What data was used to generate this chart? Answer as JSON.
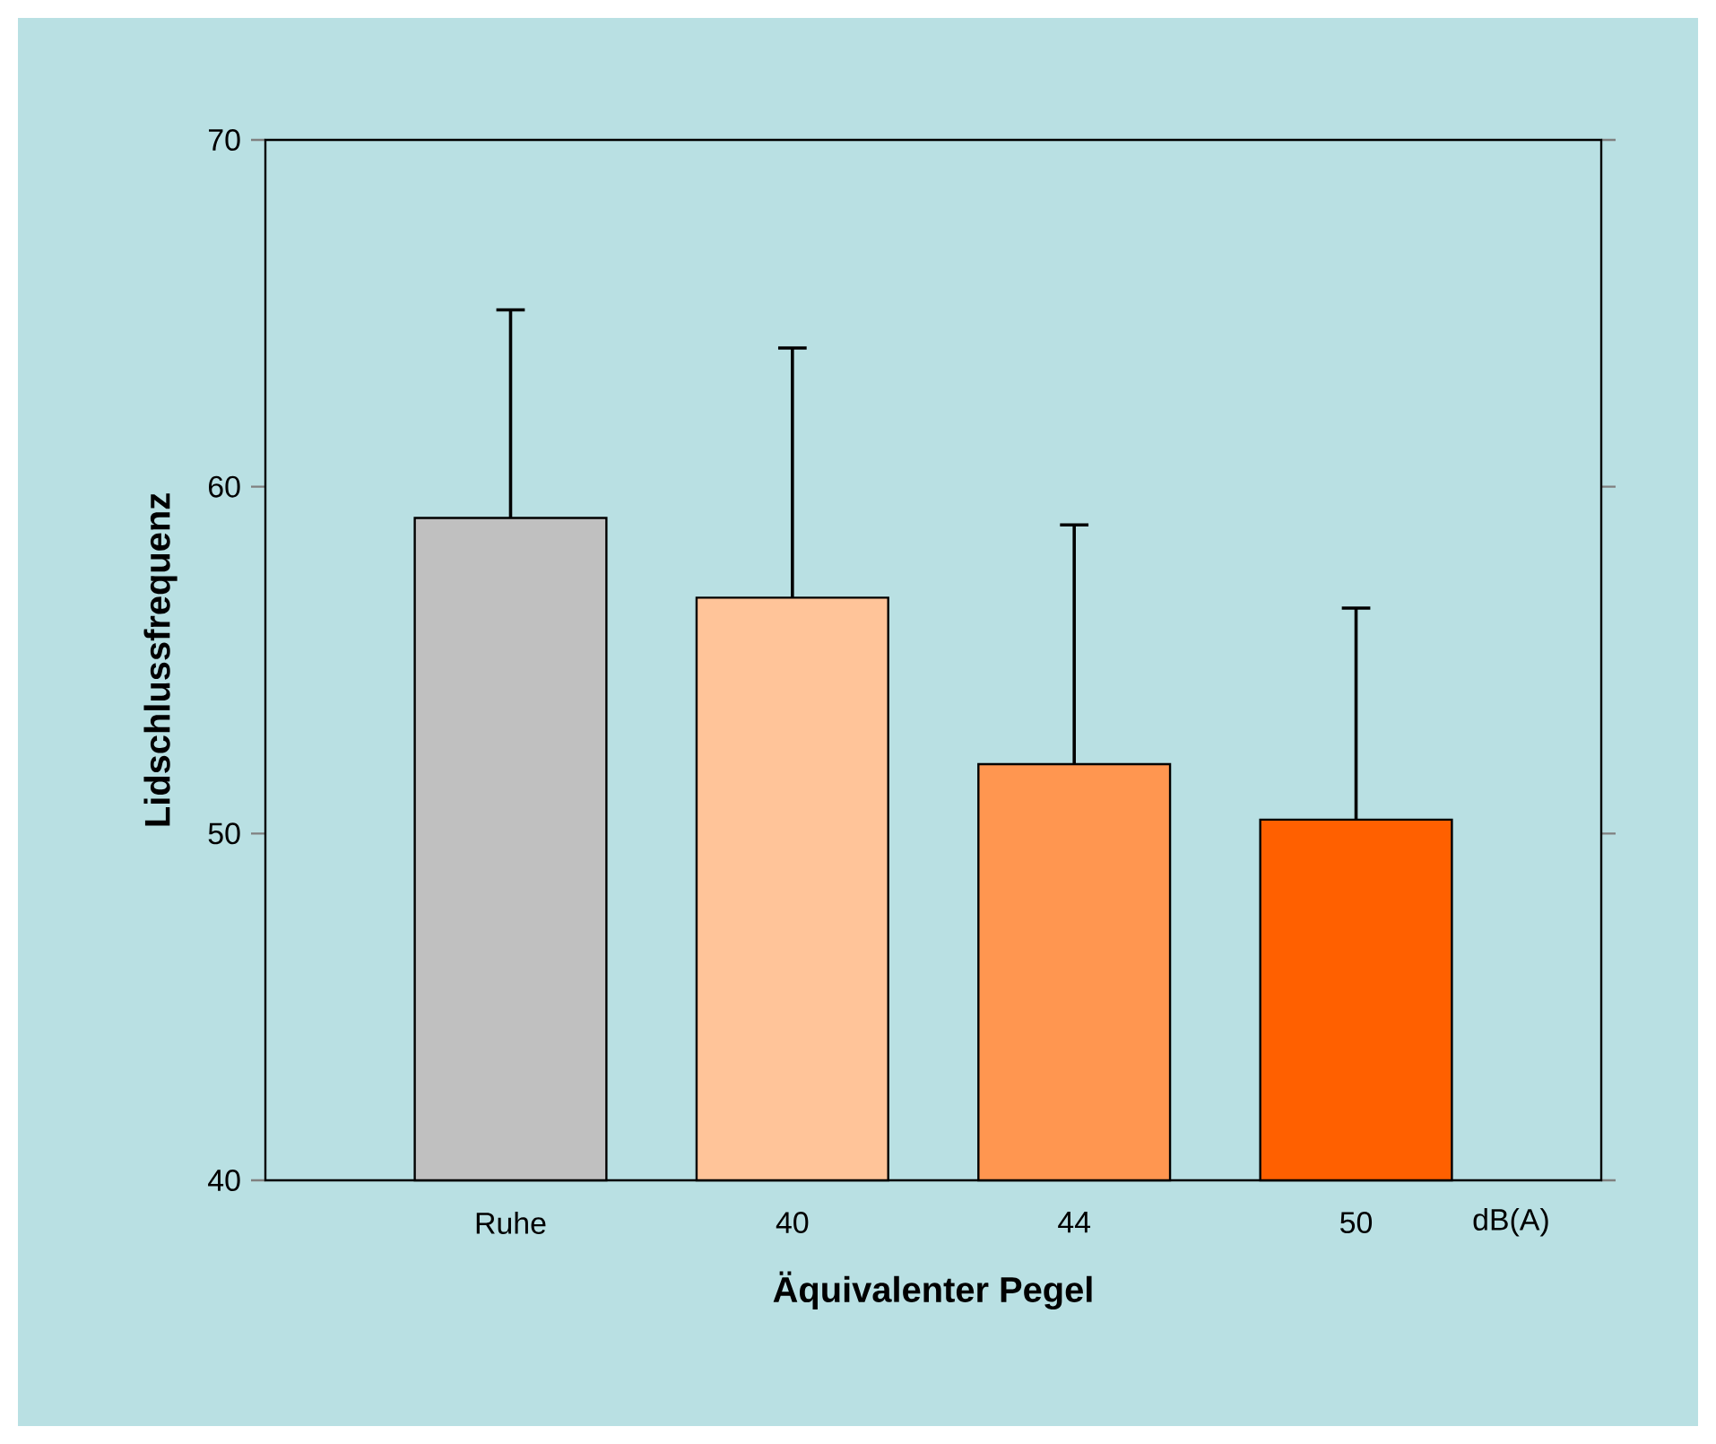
{
  "chart_data": {
    "type": "bar",
    "xlabel": "Äquivalenter Pegel",
    "ylabel": "Lidschlussfrequenz",
    "categories": [
      "Ruhe",
      "40",
      "44",
      "50"
    ],
    "values": [
      59.1,
      56.8,
      52.0,
      50.4
    ],
    "colors": [
      "#c0c0c0",
      "#ffc499",
      "#ff9650",
      "#ff6000"
    ],
    "errors": [
      6.0,
      7.2,
      6.9,
      6.1
    ],
    "ylim": [
      40,
      70
    ],
    "yticks": [
      40,
      50,
      60,
      70
    ],
    "annotations": [
      "dB(A)"
    ],
    "grid": false
  }
}
